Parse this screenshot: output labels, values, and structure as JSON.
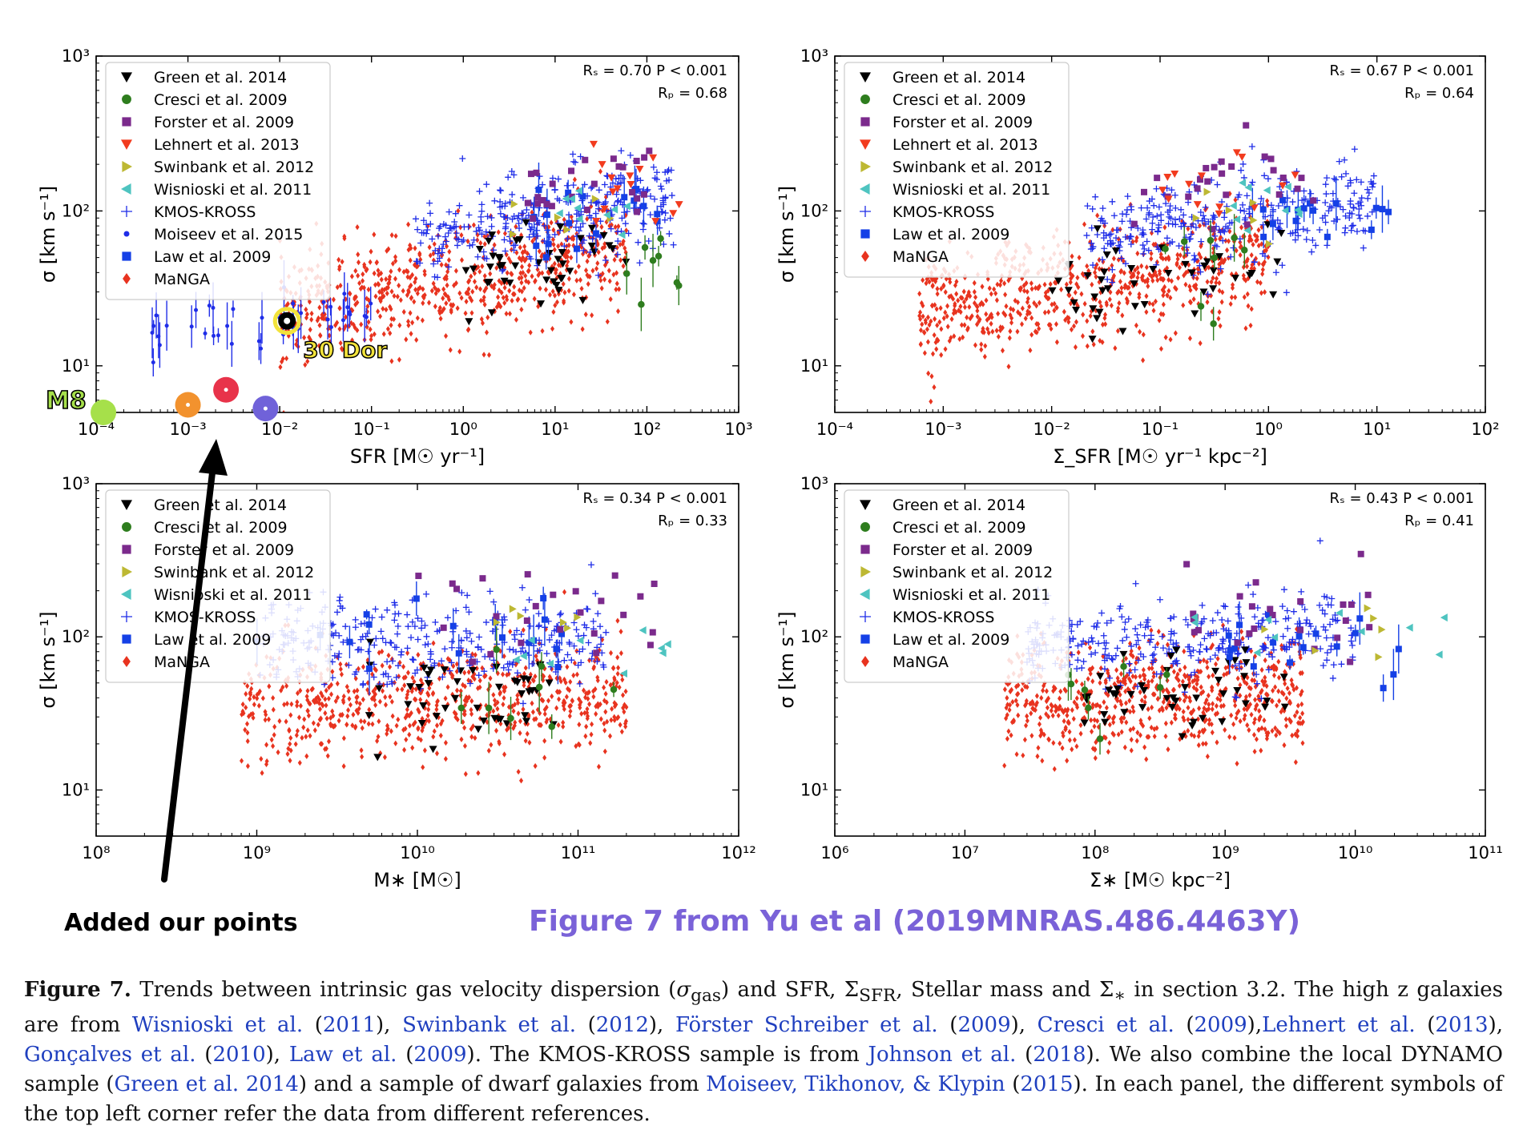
{
  "figure_title": "Figure 7 from Yu et al (2019MNRAS.486.4463Y)",
  "added_note": "Added our points",
  "colors": {
    "green": "#000000",
    "cresci": "#2e7d1e",
    "forster": "#7b2a8c",
    "lehnert": "#f23b1e",
    "swinbank": "#bdb833",
    "wisnioski": "#4ec4c0",
    "kmos": "#1f2de8",
    "moiseev": "#1f2de8",
    "law": "#1540e6",
    "manga": "#e8331f",
    "figure_title": "#7a62d8"
  },
  "annotations": {
    "m8": {
      "label": "M8",
      "x": 0.00012,
      "y": 5,
      "color": "#a6e04a"
    },
    "dor": {
      "label": "30 Dor",
      "x": 0.012,
      "y": 19.5,
      "color": "#f2e33b"
    },
    "extra_points": [
      {
        "x": 0.001,
        "y": 5.6,
        "color": "#f2922e"
      },
      {
        "x": 0.0026,
        "y": 7.0,
        "color": "#e8334a"
      },
      {
        "x": 0.007,
        "y": 5.3,
        "color": "#7062d9"
      }
    ]
  },
  "caption": {
    "label": "Figure 7.",
    "p1": " Trends between intrinsic gas velocity dispersion (",
    "sigma": "σ",
    "sigma_sub": "gas",
    "p2": ") and SFR, Σ",
    "sfr_sub": "SFR",
    "p3": ", Stellar mass and Σ",
    "star_sub": "∗",
    "p4": " in section 3.2. The high z galaxies are from ",
    "r1": "Wisnioski et al.",
    "r1y": "2011",
    "r2": "Swinbank et al.",
    "r2y": "2012",
    "r3": "Förster Schreiber et al.",
    "r3y": "2009",
    "r4": "Cresci et al.",
    "r4y": "2009",
    "r5": "Lehnert et al.",
    "r5y": "2013",
    "r6": "Gonçalves et al.",
    "r6y": "2010",
    "r7": "Law et al.",
    "r7y": "2009",
    "p5": ". The KMOS-KROSS sample is from ",
    "r8": "Johnson et al.",
    "r8y": "2018",
    "p6": ". We also combine the local DYNAMO sample (",
    "r9": "Green et al. 2014",
    "p7": ") and a sample of dwarf galaxies from ",
    "r10": "Moiseev, Tikhonov, & Klypin",
    "r10y": "2015",
    "p8": ". In each panel, the different symbols of the top left corner refer the data from different references."
  },
  "chart_data": [
    {
      "type": "scatter",
      "xlabel": "SFR [M☉ yr⁻¹]",
      "ylabel": "σ [km s⁻¹]",
      "xscale": "log",
      "yscale": "log",
      "xlim": [
        0.0001,
        1000
      ],
      "ylim": [
        5,
        1000
      ],
      "xticks": [
        "10⁻⁴",
        "10⁻³",
        "10⁻²",
        "10⁻¹",
        "10⁰",
        "10¹",
        "10²",
        "10³"
      ],
      "yticks": [
        "10¹",
        "10²",
        "10³"
      ],
      "stats": [
        "Rₛ = 0.70 P < 0.001",
        "Rₚ = 0.68"
      ],
      "legend_position": "top-left",
      "legend": [
        {
          "name": "Green et al. 2014",
          "marker": "tri-down",
          "color": "#000000"
        },
        {
          "name": "Cresci et al. 2009",
          "marker": "circle",
          "color": "#2e7d1e"
        },
        {
          "name": "Forster et al. 2009",
          "marker": "square",
          "color": "#7b2a8c"
        },
        {
          "name": "Lehnert et al. 2013",
          "marker": "tri-down",
          "color": "#f23b1e"
        },
        {
          "name": "Swinbank et al. 2012",
          "marker": "tri-right",
          "color": "#bdb833"
        },
        {
          "name": "Wisnioski et al. 2011",
          "marker": "tri-left",
          "color": "#4ec4c0"
        },
        {
          "name": "KMOS-KROSS",
          "marker": "plus",
          "color": "#1f2de8"
        },
        {
          "name": "Moiseev et al. 2015",
          "marker": "dot",
          "color": "#1f2de8"
        },
        {
          "name": "Law et al. 2009",
          "marker": "square",
          "color": "#1540e6"
        },
        {
          "name": "MaNGA",
          "marker": "diamond",
          "color": "#e8331f"
        }
      ],
      "clouds": {
        "manga": {
          "n": 700,
          "xlo": 0.01,
          "xhi": 60,
          "yc": 35,
          "spread": 0.18,
          "slope": 0.12
        },
        "kmos": {
          "n": 320,
          "xlo": 0.3,
          "xhi": 200,
          "yc": 90,
          "spread": 0.15,
          "slope": 0.1
        },
        "green": {
          "n": 45,
          "xlo": 1,
          "xhi": 60,
          "yc": 40,
          "spread": 0.15,
          "slope": 0.05
        },
        "law": {
          "n": 18,
          "xlo": 3,
          "xhi": 150,
          "yc": 90,
          "spread": 0.12,
          "slope": 0.05
        },
        "forster": {
          "n": 25,
          "xlo": 5,
          "xhi": 120,
          "yc": 140,
          "spread": 0.15,
          "slope": 0.05
        },
        "lehnert": {
          "n": 14,
          "xlo": 20,
          "xhi": 250,
          "yc": 150,
          "spread": 0.12,
          "slope": 0.0
        },
        "cresci": {
          "n": 8,
          "xlo": 20,
          "xhi": 250,
          "yc": 45,
          "spread": 0.15,
          "slope": 0.0
        },
        "swinbank": {
          "n": 6,
          "xlo": 3,
          "xhi": 40,
          "yc": 95,
          "spread": 0.1,
          "slope": 0.0
        },
        "wisnioski": {
          "n": 10,
          "xlo": 10,
          "xhi": 80,
          "yc": 100,
          "spread": 0.1,
          "slope": 0.0
        },
        "moiseev": {
          "n": 40,
          "xlo": 0.0003,
          "xhi": 0.1,
          "yc": 20,
          "spread": 0.08,
          "slope": 0.08
        }
      }
    },
    {
      "type": "scatter",
      "xlabel": "Σ_SFR [M☉ yr⁻¹ kpc⁻²]",
      "ylabel": "σ [km s⁻¹]",
      "xscale": "log",
      "yscale": "log",
      "xlim": [
        0.0001,
        100
      ],
      "ylim": [
        5,
        1000
      ],
      "xticks": [
        "10⁻⁴",
        "10⁻³",
        "10⁻²",
        "10⁻¹",
        "10⁰",
        "10¹",
        "10²"
      ],
      "yticks": [
        "10¹",
        "10²",
        "10³"
      ],
      "stats": [
        "Rₛ = 0.67 P < 0.001",
        "Rₚ = 0.64"
      ],
      "legend_position": "top-left",
      "legend": [
        {
          "name": "Green et al. 2014",
          "marker": "tri-down",
          "color": "#000000"
        },
        {
          "name": "Cresci et al. 2009",
          "marker": "circle",
          "color": "#2e7d1e"
        },
        {
          "name": "Forster et al. 2009",
          "marker": "square",
          "color": "#7b2a8c"
        },
        {
          "name": "Lehnert et al. 2013",
          "marker": "tri-down",
          "color": "#f23b1e"
        },
        {
          "name": "Swinbank et al. 2012",
          "marker": "tri-right",
          "color": "#bdb833"
        },
        {
          "name": "Wisnioski et al. 2011",
          "marker": "tri-left",
          "color": "#4ec4c0"
        },
        {
          "name": "KMOS-KROSS",
          "marker": "plus",
          "color": "#1f2de8"
        },
        {
          "name": "Law et al. 2009",
          "marker": "square",
          "color": "#1540e6"
        },
        {
          "name": "MaNGA",
          "marker": "diamond",
          "color": "#e8331f"
        }
      ],
      "clouds": {
        "manga": {
          "n": 700,
          "xlo": 0.0006,
          "xhi": 1,
          "yc": 33,
          "spread": 0.18,
          "slope": 0.1
        },
        "kmos": {
          "n": 320,
          "xlo": 0.02,
          "xhi": 10,
          "yc": 85,
          "spread": 0.15,
          "slope": 0.08
        },
        "green": {
          "n": 45,
          "xlo": 0.01,
          "xhi": 1.5,
          "yc": 40,
          "spread": 0.15,
          "slope": 0.05
        },
        "law": {
          "n": 18,
          "xlo": 0.5,
          "xhi": 25,
          "yc": 90,
          "spread": 0.12,
          "slope": 0.05
        },
        "forster": {
          "n": 25,
          "xlo": 0.05,
          "xhi": 3,
          "yc": 150,
          "spread": 0.15,
          "slope": 0.0
        },
        "lehnert": {
          "n": 14,
          "xlo": 0.1,
          "xhi": 2,
          "yc": 150,
          "spread": 0.12,
          "slope": 0.0
        },
        "cresci": {
          "n": 8,
          "xlo": 0.1,
          "xhi": 1,
          "yc": 45,
          "spread": 0.15,
          "slope": 0.0
        },
        "swinbank": {
          "n": 6,
          "xlo": 0.2,
          "xhi": 2,
          "yc": 95,
          "spread": 0.1,
          "slope": 0.0
        },
        "wisnioski": {
          "n": 10,
          "xlo": 0.3,
          "xhi": 2,
          "yc": 100,
          "spread": 0.1,
          "slope": 0.0
        }
      }
    },
    {
      "type": "scatter",
      "xlabel": "M∗ [M☉]",
      "ylabel": "σ [km s⁻¹]",
      "xscale": "log",
      "yscale": "log",
      "xlim": [
        100000000,
        1000000000000
      ],
      "ylim": [
        5,
        1000
      ],
      "xticks": [
        "10⁸",
        "10⁹",
        "10¹⁰",
        "10¹¹",
        "10¹²"
      ],
      "yticks": [
        "10¹",
        "10²",
        "10³"
      ],
      "stats": [
        "Rₛ = 0.34 P < 0.001",
        "Rₚ = 0.33"
      ],
      "legend_position": "top-left",
      "legend": [
        {
          "name": "Green et al. 2014",
          "marker": "tri-down",
          "color": "#000000"
        },
        {
          "name": "Cresci et al. 2009",
          "marker": "circle",
          "color": "#2e7d1e"
        },
        {
          "name": "Forster et al. 2009",
          "marker": "square",
          "color": "#7b2a8c"
        },
        {
          "name": "Swinbank et al. 2012",
          "marker": "tri-right",
          "color": "#bdb833"
        },
        {
          "name": "Wisnioski et al. 2011",
          "marker": "tri-left",
          "color": "#4ec4c0"
        },
        {
          "name": "KMOS-KROSS",
          "marker": "plus",
          "color": "#1f2de8"
        },
        {
          "name": "Law et al. 2009",
          "marker": "square",
          "color": "#1540e6"
        },
        {
          "name": "MaNGA",
          "marker": "diamond",
          "color": "#e8331f"
        }
      ],
      "clouds": {
        "manga": {
          "n": 700,
          "xlo": 800000000,
          "xhi": 200000000000,
          "yc": 38,
          "spread": 0.18,
          "slope": 0.03
        },
        "kmos": {
          "n": 320,
          "xlo": 1000000000,
          "xhi": 150000000000,
          "yc": 95,
          "spread": 0.14,
          "slope": 0.03
        },
        "green": {
          "n": 45,
          "xlo": 5000000000,
          "xhi": 80000000000,
          "yc": 40,
          "spread": 0.15,
          "slope": 0.0
        },
        "law": {
          "n": 18,
          "xlo": 1000000000,
          "xhi": 100000000000,
          "yc": 90,
          "spread": 0.12,
          "slope": 0.0
        },
        "forster": {
          "n": 25,
          "xlo": 10000000000,
          "xhi": 300000000000,
          "yc": 150,
          "spread": 0.15,
          "slope": 0.0
        },
        "cresci": {
          "n": 8,
          "xlo": 10000000000,
          "xhi": 300000000000,
          "yc": 45,
          "spread": 0.15,
          "slope": 0.0
        },
        "swinbank": {
          "n": 6,
          "xlo": 30000000000,
          "xhi": 100000000000,
          "yc": 120,
          "spread": 0.1,
          "slope": 0.0
        },
        "wisnioski": {
          "n": 10,
          "xlo": 30000000000,
          "xhi": 500000000000,
          "yc": 100,
          "spread": 0.1,
          "slope": 0.0
        }
      }
    },
    {
      "type": "scatter",
      "xlabel": "Σ∗ [M☉ kpc⁻²]",
      "ylabel": "σ [km s⁻¹]",
      "xscale": "log",
      "yscale": "log",
      "xlim": [
        1000000,
        100000000000
      ],
      "ylim": [
        5,
        1000
      ],
      "xticks": [
        "10⁶",
        "10⁷",
        "10⁸",
        "10⁹",
        "10¹⁰",
        "10¹¹"
      ],
      "yticks": [
        "10¹",
        "10²",
        "10³"
      ],
      "stats": [
        "Rₛ = 0.43 P < 0.001",
        "Rₚ = 0.41"
      ],
      "legend_position": "top-left",
      "legend": [
        {
          "name": "Green et al. 2014",
          "marker": "tri-down",
          "color": "#000000"
        },
        {
          "name": "Cresci et al. 2009",
          "marker": "circle",
          "color": "#2e7d1e"
        },
        {
          "name": "Forster et al. 2009",
          "marker": "square",
          "color": "#7b2a8c"
        },
        {
          "name": "Swinbank et al. 2012",
          "marker": "tri-right",
          "color": "#bdb833"
        },
        {
          "name": "Wisnioski et al. 2011",
          "marker": "tri-left",
          "color": "#4ec4c0"
        },
        {
          "name": "KMOS-KROSS",
          "marker": "plus",
          "color": "#1f2de8"
        },
        {
          "name": "Law et al. 2009",
          "marker": "square",
          "color": "#1540e6"
        },
        {
          "name": "MaNGA",
          "marker": "diamond",
          "color": "#e8331f"
        }
      ],
      "clouds": {
        "manga": {
          "n": 700,
          "xlo": 20000000,
          "xhi": 4000000000,
          "yc": 40,
          "spread": 0.17,
          "slope": 0.05
        },
        "kmos": {
          "n": 320,
          "xlo": 30000000,
          "xhi": 10000000000,
          "yc": 95,
          "spread": 0.14,
          "slope": 0.05
        },
        "green": {
          "n": 45,
          "xlo": 80000000,
          "xhi": 3000000000,
          "yc": 42,
          "spread": 0.15,
          "slope": 0.0
        },
        "law": {
          "n": 18,
          "xlo": 1000000000,
          "xhi": 30000000000,
          "yc": 90,
          "spread": 0.12,
          "slope": 0.0
        },
        "forster": {
          "n": 25,
          "xlo": 400000000,
          "xhi": 15000000000,
          "yc": 150,
          "spread": 0.15,
          "slope": 0.0
        },
        "cresci": {
          "n": 8,
          "xlo": 50000000,
          "xhi": 500000000,
          "yc": 45,
          "spread": 0.15,
          "slope": 0.0
        },
        "swinbank": {
          "n": 6,
          "xlo": 2000000000,
          "xhi": 20000000000,
          "yc": 120,
          "spread": 0.1,
          "slope": 0.0
        },
        "wisnioski": {
          "n": 10,
          "xlo": 500000000,
          "xhi": 50000000000,
          "yc": 100,
          "spread": 0.1,
          "slope": 0.0
        }
      }
    }
  ]
}
